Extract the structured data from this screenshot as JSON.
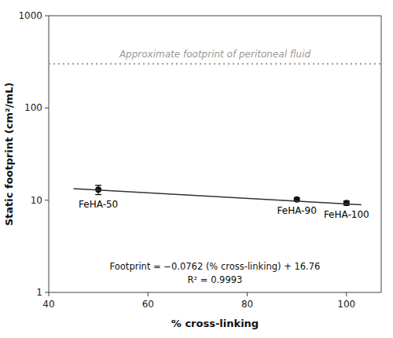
{
  "chart_data": {
    "type": "scatter",
    "x_label": "% cross-linking",
    "y_label": "Static footprint (cm²/mL)",
    "log": "y",
    "grid": false,
    "xlim": [
      40,
      107
    ],
    "xticks": [
      40,
      60,
      80,
      100
    ],
    "ylim": [
      1,
      1000
    ],
    "yticks": [
      1,
      10,
      100,
      1000
    ],
    "background_color": "#ffffff",
    "series": [
      {
        "type": "scatter",
        "marker": "circle",
        "color": "#111111",
        "x": [
          50,
          90,
          100
        ],
        "values": [
          13.0,
          10.2,
          9.3
        ],
        "errors": [
          1.5,
          0.4,
          0.5
        ],
        "point_labels": [
          "FeHA-50",
          "FeHA-90",
          "FeHA-100"
        ]
      },
      {
        "type": "line",
        "line_style": "solid",
        "color": "#333333",
        "x": [
          45,
          103
        ],
        "values": [
          13.331,
          8.9114
        ]
      }
    ],
    "annotations": [
      {
        "text": "Approximate footprint of peritoneal fluid",
        "y": 300,
        "color": "#999999",
        "line_style": "dotted"
      },
      {
        "text": "Footprint = −0.0762 (% cross-linking) + 16.76"
      },
      {
        "text": "R² = 0.9993"
      }
    ]
  }
}
